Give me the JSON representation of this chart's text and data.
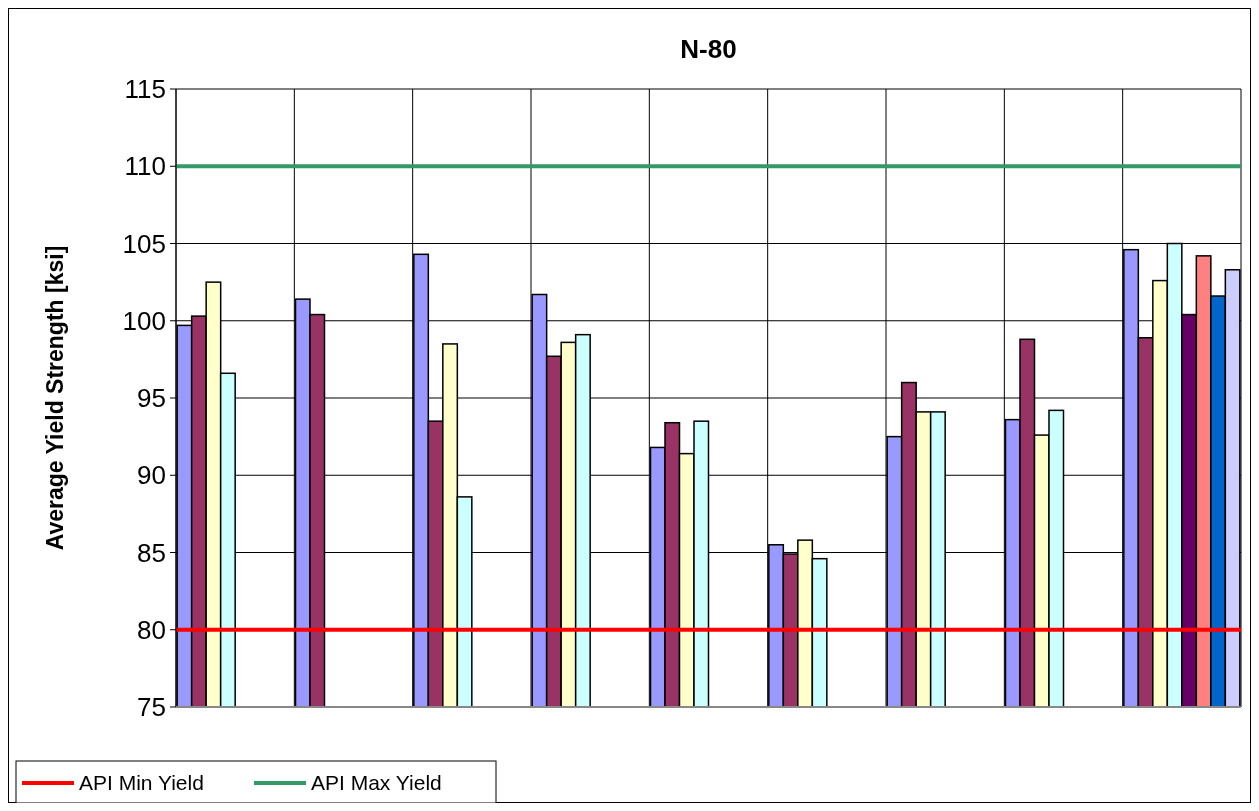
{
  "chart_data": {
    "type": "bar",
    "title": "N-80",
    "ylabel": "Average Yield Strength [ksi]",
    "categories": [
      null,
      null,
      null,
      null,
      null,
      null,
      null,
      null,
      null
    ],
    "series": [
      {
        "color": "#9999ff",
        "values": [
          99.7,
          101.4,
          104.3,
          101.7,
          91.8,
          85.5,
          92.5,
          93.6,
          104.6
        ]
      },
      {
        "color": "#993366",
        "values": [
          100.3,
          100.4,
          93.5,
          97.7,
          93.4,
          84.9,
          96.0,
          98.8,
          98.9
        ]
      },
      {
        "color": "#ffffcc",
        "values": [
          102.5,
          null,
          98.5,
          98.6,
          91.4,
          85.8,
          94.1,
          92.6,
          102.6
        ]
      },
      {
        "color": "#ccffff",
        "values": [
          96.6,
          null,
          88.6,
          99.1,
          93.5,
          84.6,
          94.1,
          94.2,
          105.0
        ]
      },
      {
        "color": "#660066",
        "values": [
          null,
          null,
          null,
          null,
          null,
          null,
          null,
          null,
          100.4
        ]
      },
      {
        "color": "#ff8080",
        "values": [
          null,
          null,
          null,
          null,
          null,
          null,
          null,
          null,
          104.2
        ]
      },
      {
        "color": "#0066cc",
        "values": [
          null,
          null,
          null,
          null,
          null,
          null,
          null,
          null,
          101.6
        ]
      },
      {
        "color": "#ccccff",
        "values": [
          null,
          null,
          null,
          null,
          null,
          null,
          null,
          null,
          103.3
        ]
      }
    ],
    "ylim": [
      75,
      115
    ],
    "yticks": [
      75,
      80,
      85,
      90,
      95,
      100,
      105,
      110,
      115
    ],
    "grid": true,
    "ref_lines": [
      {
        "axis": "y",
        "value": 80,
        "label": "API Min Yield",
        "color": "#ff0000"
      },
      {
        "axis": "y",
        "value": 110,
        "label": "API Max Yield",
        "color": "#339966"
      }
    ],
    "legend": "bottom left"
  }
}
